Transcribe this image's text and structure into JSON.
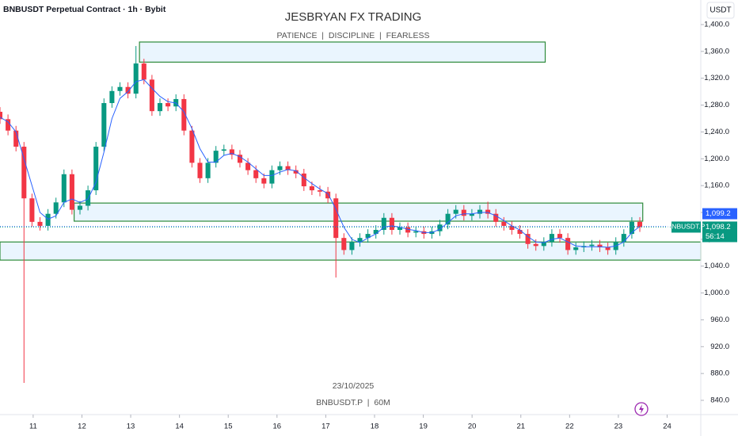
{
  "chart_data": {
    "type": "candlestick",
    "title": "BNBUSDT Perpetual Contract · 1h · Bybit",
    "watermark_title": "JESBRYAN FX TRADING",
    "watermark_subtitle": "PATIENCE  |  DISCIPLINE  |  FEARLESS",
    "date_label": "23/10/2025",
    "symbol_label": "BNBUSDT.P  |  60M",
    "currency": "USDT",
    "up_color": "#089981",
    "down_color": "#f23645",
    "x": [
      10.32,
      10.484,
      10.648,
      10.812,
      10.976,
      11.14,
      11.304,
      11.468,
      11.632,
      11.796,
      11.96,
      12.124,
      12.288,
      12.452,
      12.616,
      12.78,
      12.944,
      13.108,
      13.272,
      13.436,
      13.6,
      13.764,
      13.928,
      14.092,
      14.256,
      14.42,
      14.584,
      14.748,
      14.912,
      15.076,
      15.24,
      15.404,
      15.568,
      15.732,
      15.896,
      16.06,
      16.224,
      16.388,
      16.552,
      16.716,
      16.88,
      17.044,
      17.208,
      17.372,
      17.536,
      17.7,
      17.864,
      18.028,
      18.192,
      18.356,
      18.52,
      18.684,
      18.848,
      19.012,
      19.176,
      19.34,
      19.504,
      19.668,
      19.832,
      19.996,
      20.16,
      20.324,
      20.488,
      20.652,
      20.816,
      20.98,
      21.144,
      21.308,
      21.472,
      21.636,
      21.8,
      21.964,
      22.128,
      22.292,
      22.456,
      22.62,
      22.784,
      22.948,
      23.112,
      23.276,
      23.44
    ],
    "open": [
      1270,
      1259,
      1242,
      1218,
      1141,
      1106,
      1100,
      1118,
      1135,
      1177,
      1124,
      1130,
      1153,
      1218,
      1283,
      1301,
      1307,
      1297,
      1342,
      1318,
      1271,
      1283,
      1278,
      1289,
      1242,
      1194,
      1171,
      1194,
      1212,
      1214,
      1206,
      1194,
      1183,
      1171,
      1163,
      1183,
      1189,
      1183,
      1178,
      1159,
      1153,
      1151,
      1141,
      1082,
      1064,
      1076,
      1082,
      1088,
      1094,
      1112,
      1094,
      1098,
      1090,
      1092,
      1088,
      1092,
      1102,
      1118,
      1124,
      1115,
      1118,
      1124,
      1118,
      1106,
      1100,
      1094,
      1088,
      1073,
      1070,
      1076,
      1088,
      1082,
      1064,
      1068,
      1070,
      1072,
      1068,
      1064,
      1076,
      1088,
      1106
    ],
    "high": [
      1277,
      1266,
      1249,
      1225,
      1148,
      1113,
      1125,
      1142,
      1184,
      1184,
      1137,
      1160,
      1225,
      1290,
      1308,
      1314,
      1314,
      1368,
      1349,
      1325,
      1290,
      1290,
      1296,
      1296,
      1249,
      1201,
      1201,
      1219,
      1221,
      1221,
      1213,
      1201,
      1190,
      1178,
      1190,
      1196,
      1196,
      1190,
      1185,
      1166,
      1160,
      1158,
      1148,
      1089,
      1083,
      1089,
      1095,
      1101,
      1119,
      1119,
      1105,
      1105,
      1099,
      1099,
      1099,
      1109,
      1125,
      1131,
      1131,
      1125,
      1131,
      1136,
      1125,
      1113,
      1107,
      1101,
      1095,
      1080,
      1083,
      1095,
      1095,
      1089,
      1075,
      1077,
      1079,
      1079,
      1075,
      1083,
      1095,
      1113,
      1113
    ],
    "low": [
      1252,
      1235,
      1211,
      866,
      1099,
      1093,
      1093,
      1111,
      1128,
      1117,
      1117,
      1123,
      1146,
      1211,
      1276,
      1294,
      1290,
      1290,
      1311,
      1264,
      1264,
      1271,
      1271,
      1235,
      1187,
      1164,
      1164,
      1187,
      1205,
      1199,
      1187,
      1176,
      1164,
      1156,
      1156,
      1176,
      1176,
      1171,
      1152,
      1146,
      1144,
      1134,
      1023,
      1057,
      1057,
      1069,
      1075,
      1081,
      1087,
      1087,
      1087,
      1083,
      1083,
      1081,
      1081,
      1085,
      1095,
      1111,
      1108,
      1108,
      1111,
      1111,
      1099,
      1093,
      1087,
      1081,
      1066,
      1063,
      1063,
      1069,
      1075,
      1057,
      1057,
      1061,
      1063,
      1061,
      1057,
      1057,
      1069,
      1081,
      1091
    ],
    "close": [
      1259,
      1242,
      1218,
      1141,
      1106,
      1100,
      1118,
      1135,
      1177,
      1124,
      1130,
      1153,
      1218,
      1283,
      1301,
      1307,
      1297,
      1342,
      1318,
      1271,
      1283,
      1278,
      1289,
      1242,
      1194,
      1171,
      1194,
      1212,
      1214,
      1206,
      1194,
      1183,
      1171,
      1163,
      1183,
      1189,
      1183,
      1178,
      1159,
      1153,
      1151,
      1141,
      1082,
      1064,
      1076,
      1082,
      1088,
      1094,
      1112,
      1094,
      1098,
      1090,
      1092,
      1088,
      1092,
      1102,
      1118,
      1124,
      1115,
      1118,
      1124,
      1118,
      1106,
      1100,
      1094,
      1088,
      1073,
      1070,
      1076,
      1088,
      1082,
      1064,
      1068,
      1070,
      1072,
      1068,
      1064,
      1076,
      1088,
      1106,
      1098.2
    ],
    "ma": {
      "color": "#2962ff",
      "values": [
        1262,
        1255,
        1240,
        1200,
        1160,
        1120,
        1110,
        1115,
        1135,
        1140,
        1135,
        1140,
        1165,
        1210,
        1260,
        1290,
        1300,
        1315,
        1318,
        1305,
        1293,
        1285,
        1283,
        1270,
        1245,
        1215,
        1195,
        1195,
        1205,
        1208,
        1203,
        1195,
        1185,
        1175,
        1175,
        1180,
        1184,
        1182,
        1172,
        1163,
        1155,
        1148,
        1125,
        1098,
        1080,
        1075,
        1082,
        1088,
        1098,
        1100,
        1098,
        1095,
        1093,
        1090,
        1090,
        1095,
        1105,
        1115,
        1118,
        1118,
        1120,
        1120,
        1115,
        1108,
        1100,
        1094,
        1084,
        1076,
        1075,
        1080,
        1082,
        1076,
        1070,
        1069,
        1069,
        1069,
        1068,
        1070,
        1076,
        1090,
        1099.2
      ]
    },
    "zones": [
      {
        "x": [
          13.18,
          21.5
        ],
        "y": [
          1344,
          1374
        ]
      },
      {
        "x": [
          11.84,
          23.5
        ],
        "y": [
          1107,
          1134
        ]
      },
      {
        "x": [
          10.32,
          24.69
        ],
        "y": [
          1049,
          1076
        ]
      }
    ],
    "zone_color": "#2e8b3a",
    "price_tags": [
      {
        "value": 1099.2,
        "label": "1,099.2",
        "color": "#2962ff"
      },
      {
        "value": 1098.2,
        "label": "1,098.2",
        "color": "#089981",
        "symbol": "BNBUSDT.P",
        "countdown": "56:14"
      }
    ],
    "xlim": [
      10.32,
      24.69
    ],
    "ylim": [
      822.3,
      1436.6
    ],
    "xticks": [
      11,
      12,
      13,
      14,
      15,
      16,
      17,
      18,
      19,
      20,
      21,
      22,
      23,
      24
    ],
    "yticks": [
      {
        "value": 1400,
        "label": "1,400.0"
      },
      {
        "value": 1360,
        "label": "1,360.0"
      },
      {
        "value": 1320,
        "label": "1,320.0"
      },
      {
        "value": 1280,
        "label": "1,280.0"
      },
      {
        "value": 1240,
        "label": "1,240.0"
      },
      {
        "value": 1200,
        "label": "1,200.0"
      },
      {
        "value": 1160,
        "label": "1,160.0"
      },
      {
        "value": 1120,
        "label": "1,120.0"
      },
      {
        "value": 1080,
        "label": "1,080.0"
      },
      {
        "value": 1040,
        "label": "1,040.0"
      },
      {
        "value": 1000,
        "label": "1,000.0"
      },
      {
        "value": 960,
        "label": "960.0"
      },
      {
        "value": 920,
        "label": "920.0"
      },
      {
        "value": 880,
        "label": "880.0"
      },
      {
        "value": 840,
        "label": "840.0"
      }
    ]
  }
}
